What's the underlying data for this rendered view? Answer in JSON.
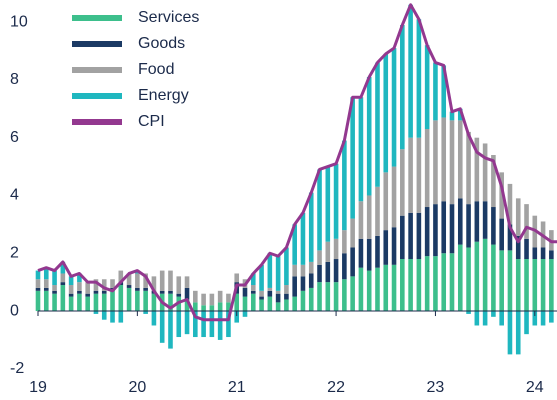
{
  "chart_data": {
    "type": "bar",
    "categories": [
      "19",
      null,
      null,
      null,
      null,
      null,
      null,
      null,
      null,
      null,
      null,
      null,
      "20",
      null,
      null,
      null,
      null,
      null,
      null,
      null,
      null,
      null,
      null,
      null,
      "21",
      null,
      null,
      null,
      null,
      null,
      null,
      null,
      null,
      null,
      null,
      null,
      "22",
      null,
      null,
      null,
      null,
      null,
      null,
      null,
      null,
      null,
      null,
      null,
      "23",
      null,
      null,
      null,
      null,
      null,
      null,
      null,
      null,
      null,
      null,
      null,
      "24",
      null,
      null,
      null
    ],
    "series": [
      {
        "name": "Services",
        "color": "#3dbf8c",
        "values": [
          0.7,
          0.7,
          0.6,
          0.9,
          0.5,
          0.6,
          0.5,
          0.6,
          0.6,
          0.7,
          0.9,
          0.8,
          0.7,
          0.7,
          0.6,
          0.6,
          0.6,
          0.5,
          0.4,
          0.3,
          0.2,
          0.2,
          0.3,
          0.3,
          0.6,
          0.5,
          0.6,
          0.4,
          0.5,
          0.3,
          0.4,
          0.5,
          0.7,
          0.8,
          1.0,
          1.0,
          1.0,
          1.1,
          1.2,
          1.5,
          1.4,
          1.5,
          1.6,
          1.6,
          1.8,
          1.8,
          1.8,
          1.9,
          1.9,
          2.0,
          2.0,
          2.3,
          2.2,
          2.4,
          2.5,
          2.3,
          2.1,
          2.1,
          1.8,
          1.8,
          1.8,
          1.8,
          1.8,
          1.7
        ]
      },
      {
        "name": "Goods",
        "color": "#1b3a64",
        "values": [
          0.1,
          0.1,
          0.1,
          0.1,
          0.1,
          0.1,
          0.1,
          0.1,
          0.1,
          0.1,
          0.1,
          0.1,
          0.1,
          0.1,
          0.1,
          0.1,
          0.1,
          0.1,
          0.4,
          0.0,
          0.0,
          0.0,
          0.0,
          0.0,
          0.4,
          0.3,
          0.1,
          0.1,
          0.2,
          0.3,
          0.2,
          0.7,
          0.5,
          0.5,
          0.6,
          0.7,
          0.8,
          0.9,
          1.0,
          1.0,
          1.1,
          1.1,
          1.2,
          1.3,
          1.5,
          1.6,
          1.6,
          1.7,
          1.8,
          1.8,
          1.7,
          1.6,
          1.5,
          1.4,
          1.3,
          1.3,
          1.1,
          0.9,
          0.8,
          0.7,
          0.4,
          0.4,
          0.3,
          0.3
        ]
      },
      {
        "name": "Food",
        "color": "#a2a2a2",
        "values": [
          0.3,
          0.3,
          0.2,
          0.3,
          0.3,
          0.3,
          0.4,
          0.4,
          0.4,
          0.3,
          0.4,
          0.4,
          0.5,
          0.5,
          0.5,
          0.7,
          0.7,
          0.6,
          0.4,
          0.4,
          0.4,
          0.4,
          0.4,
          0.3,
          0.3,
          0.3,
          0.2,
          0.2,
          0.1,
          0.1,
          0.3,
          0.4,
          0.4,
          0.4,
          0.5,
          0.7,
          0.7,
          0.8,
          1.0,
          1.3,
          1.5,
          1.7,
          2.0,
          2.1,
          2.3,
          2.6,
          2.6,
          2.7,
          2.9,
          2.9,
          2.9,
          2.7,
          2.5,
          2.2,
          2.0,
          1.8,
          1.6,
          1.4,
          1.3,
          1.2,
          1.1,
          0.9,
          0.7,
          0.7
        ]
      },
      {
        "name": "Energy",
        "color": "#1fb7bf",
        "values": [
          0.3,
          0.4,
          0.5,
          0.4,
          0.3,
          0.3,
          0.0,
          -0.1,
          -0.3,
          -0.4,
          -0.4,
          0.0,
          0.1,
          -0.1,
          -0.5,
          -1.1,
          -1.3,
          -0.9,
          -0.8,
          -0.9,
          -0.9,
          -0.9,
          -1.0,
          -0.9,
          -0.4,
          -0.2,
          0.4,
          0.9,
          1.2,
          1.2,
          1.3,
          1.4,
          1.8,
          2.4,
          2.8,
          2.6,
          2.6,
          3.1,
          4.2,
          3.6,
          4.1,
          4.3,
          4.1,
          4.1,
          4.3,
          4.6,
          4.1,
          2.9,
          2.0,
          1.8,
          0.3,
          0.4,
          -0.1,
          -0.5,
          -0.5,
          -0.2,
          -0.5,
          -1.5,
          -1.5,
          -0.8,
          -0.5,
          -0.5,
          -0.4,
          -0.3
        ]
      },
      {
        "name": "CPI",
        "color": "#93388f",
        "type": "line",
        "values": [
          1.4,
          1.5,
          1.4,
          1.7,
          1.2,
          1.3,
          1.0,
          1.0,
          0.8,
          0.7,
          1.0,
          1.3,
          1.4,
          1.2,
          0.7,
          0.3,
          0.1,
          0.3,
          0.4,
          -0.2,
          -0.3,
          -0.3,
          -0.3,
          -0.3,
          0.9,
          0.9,
          1.3,
          1.6,
          2.0,
          1.9,
          2.2,
          3.0,
          3.4,
          4.1,
          4.9,
          5.0,
          5.1,
          5.9,
          7.4,
          7.4,
          8.1,
          8.6,
          8.9,
          9.1,
          9.9,
          10.6,
          10.1,
          9.2,
          8.6,
          8.5,
          6.9,
          7.0,
          6.1,
          5.5,
          5.3,
          5.2,
          4.3,
          2.9,
          2.4,
          2.9,
          2.8,
          2.6,
          2.4,
          2.4
        ]
      }
    ],
    "stacked": true,
    "ylim": [
      -2.2,
      10.8
    ],
    "yticks": [
      -2,
      0,
      2,
      4,
      6,
      8,
      10
    ],
    "grid": false,
    "legend": "upper left"
  }
}
